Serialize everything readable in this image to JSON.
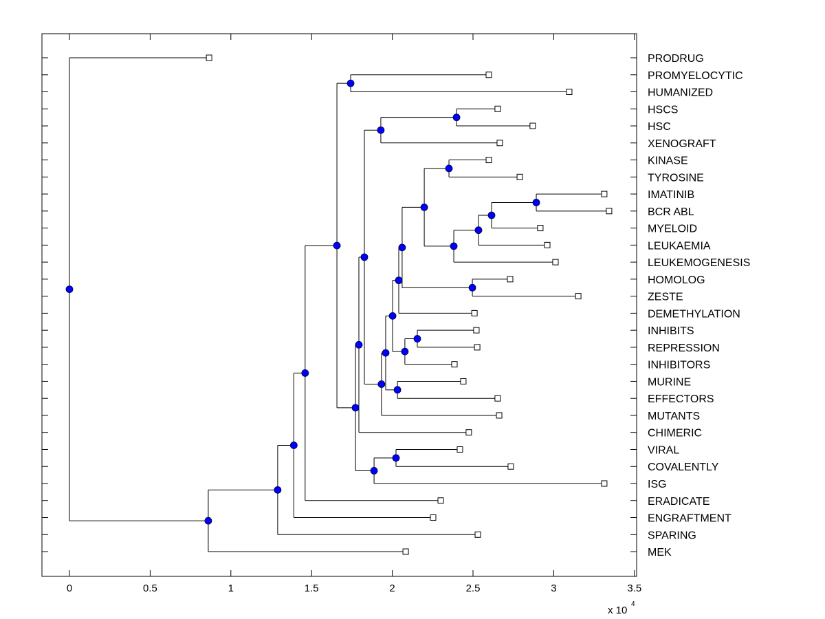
{
  "chart_data": {
    "type": "dendrogram",
    "title": "",
    "xlabel": "",
    "ylabel": "",
    "x_scale_label": "x 10",
    "x_scale_exponent": "4",
    "xlim": [
      -0.17,
      3.51
    ],
    "xticks": [
      0,
      0.5,
      1,
      1.5,
      2,
      2.5,
      3,
      3.5
    ],
    "xtick_labels": [
      "0",
      "0.5",
      "1",
      "1.5",
      "2",
      "2.5",
      "3",
      "3.5"
    ],
    "grid": false,
    "colors": {
      "node_fill": "#0000ff",
      "line": "#000000",
      "leaf_fill": "#ffffff"
    },
    "leaves": [
      {
        "name": "PRODRUG",
        "value": 0.865
      },
      {
        "name": "PROMYELOCYTIC",
        "value": 2.598
      },
      {
        "name": "HUMANIZED",
        "value": 3.096
      },
      {
        "name": "HSCS",
        "value": 2.653
      },
      {
        "name": "HSC",
        "value": 2.87
      },
      {
        "name": "XENOGRAFT",
        "value": 2.666
      },
      {
        "name": "KINASE",
        "value": 2.598
      },
      {
        "name": "TYROSINE",
        "value": 2.79
      },
      {
        "name": "IMATINIB",
        "value": 3.313
      },
      {
        "name": "BCR ABL",
        "value": 3.343
      },
      {
        "name": "MYELOID",
        "value": 2.917
      },
      {
        "name": "LEUKAEMIA",
        "value": 2.96
      },
      {
        "name": "LEUKEMOGENESIS",
        "value": 3.011
      },
      {
        "name": "HOMOLOG",
        "value": 2.73
      },
      {
        "name": "ZESTE",
        "value": 3.152
      },
      {
        "name": "DEMETHYLATION",
        "value": 2.509
      },
      {
        "name": "INHIBITS",
        "value": 2.521
      },
      {
        "name": "REPRESSION",
        "value": 2.526
      },
      {
        "name": "INHIBITORS",
        "value": 2.385
      },
      {
        "name": "MURINE",
        "value": 2.44
      },
      {
        "name": "EFFECTORS",
        "value": 2.653
      },
      {
        "name": "MUTANTS",
        "value": 2.662
      },
      {
        "name": "CHIMERIC",
        "value": 2.474
      },
      {
        "name": "VIRAL",
        "value": 2.419
      },
      {
        "name": "COVALENTLY",
        "value": 2.734
      },
      {
        "name": "ISG",
        "value": 3.313
      },
      {
        "name": "ERADICATE",
        "value": 2.3
      },
      {
        "name": "ENGRAFTMENT",
        "value": 2.253
      },
      {
        "name": "SPARING",
        "value": 2.53
      },
      {
        "name": "MEK",
        "value": 2.083
      }
    ],
    "nodes": [
      {
        "id": "root",
        "value": 0.0,
        "children": [
          "L:PRODRUG",
          "n1"
        ]
      },
      {
        "id": "n1",
        "value": 0.86,
        "children": [
          "n2",
          "L:MEK"
        ]
      },
      {
        "id": "n2",
        "value": 1.29,
        "children": [
          "n3",
          "L:SPARING"
        ]
      },
      {
        "id": "n3",
        "value": 1.39,
        "children": [
          "n4",
          "L:ENGRAFTMENT"
        ]
      },
      {
        "id": "n4",
        "value": 1.46,
        "children": [
          "n5",
          "L:ERADICATE"
        ]
      },
      {
        "id": "n5",
        "value": 1.657,
        "children": [
          "n6",
          "n7"
        ]
      },
      {
        "id": "n6",
        "value": 1.742,
        "children": [
          "L:PROMYELOCYTIC",
          "L:HUMANIZED"
        ]
      },
      {
        "id": "n7",
        "value": 1.772,
        "children": [
          "n8",
          "n25"
        ]
      },
      {
        "id": "n8",
        "value": 1.793,
        "children": [
          "n9",
          "L:CHIMERIC"
        ]
      },
      {
        "id": "n9",
        "value": 1.827,
        "children": [
          "n10",
          "n12"
        ]
      },
      {
        "id": "n10",
        "value": 1.929,
        "children": [
          "n11",
          "L:XENOGRAFT"
        ]
      },
      {
        "id": "n11",
        "value": 2.398,
        "children": [
          "L:HSCS",
          "L:HSC"
        ]
      },
      {
        "id": "n12",
        "value": 1.933,
        "children": [
          "n13",
          "L:MUTANTS"
        ]
      },
      {
        "id": "n13",
        "value": 1.959,
        "children": [
          "n14",
          "n24"
        ]
      },
      {
        "id": "n14",
        "value": 2.002,
        "children": [
          "n15",
          "n22"
        ]
      },
      {
        "id": "n15",
        "value": 2.04,
        "children": [
          "n16",
          "L:DEMETHYLATION"
        ]
      },
      {
        "id": "n16",
        "value": 2.061,
        "children": [
          "n17",
          "n21"
        ]
      },
      {
        "id": "n17",
        "value": 2.198,
        "children": [
          "n18",
          "n19"
        ]
      },
      {
        "id": "n18",
        "value": 2.351,
        "children": [
          "L:KINASE",
          "L:TYROSINE"
        ]
      },
      {
        "id": "n19",
        "value": 2.381,
        "children": [
          "n20",
          "L:LEUKEMOGENESIS"
        ]
      },
      {
        "id": "n20",
        "value": 2.534,
        "children": [
          "n20b",
          "L:LEUKAEMIA"
        ]
      },
      {
        "id": "n20b",
        "value": 2.615,
        "children": [
          "n20c",
          "L:MYELOID"
        ]
      },
      {
        "id": "n20c",
        "value": 2.892,
        "children": [
          "L:IMATINIB",
          "L:BCR ABL"
        ]
      },
      {
        "id": "n21",
        "value": 2.496,
        "children": [
          "L:HOMOLOG",
          "L:ZESTE"
        ]
      },
      {
        "id": "n22",
        "value": 2.078,
        "children": [
          "n23",
          "L:INHIBITORS"
        ]
      },
      {
        "id": "n23",
        "value": 2.155,
        "children": [
          "L:INHIBITS",
          "L:REPRESSION"
        ]
      },
      {
        "id": "n24",
        "value": 2.032,
        "children": [
          "L:MURINE",
          "L:EFFECTORS"
        ]
      },
      {
        "id": "n25",
        "value": 1.887,
        "children": [
          "n26",
          "L:ISG"
        ]
      },
      {
        "id": "n26",
        "value": 2.023,
        "children": [
          "L:VIRAL",
          "L:COVALENTLY"
        ]
      }
    ]
  }
}
